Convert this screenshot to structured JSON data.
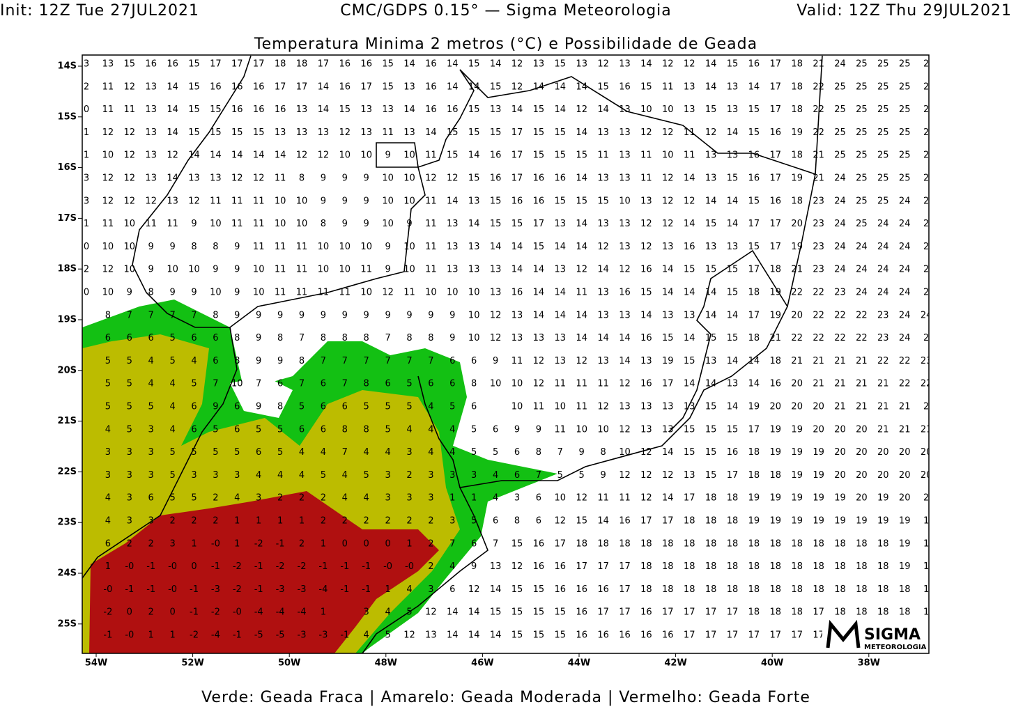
{
  "header": {
    "init": "Init: 12Z Tue 27JUL2021",
    "model": "CMC/GDPS 0.15° — Sigma Meteorologia",
    "valid": "Valid: 12Z Thu 29JUL2021"
  },
  "title": "Temperatura Minima 2 metros (°C) e Possibilidade de Geada",
  "map": {
    "lat_labels": [
      "14S",
      "15S",
      "16S",
      "17S",
      "18S",
      "19S",
      "20S",
      "21S",
      "22S",
      "23S",
      "24S",
      "25S"
    ],
    "lon_labels": [
      "54W",
      "52W",
      "50W",
      "48W",
      "46W",
      "44W",
      "42W",
      "40W",
      "38W"
    ],
    "grid": [
      [
        "3",
        "13",
        "15",
        "16",
        "16",
        "15",
        "17",
        "17",
        "17",
        "18",
        "18",
        "17",
        "16",
        "16",
        "15",
        "14",
        "16",
        "14",
        "15",
        "14",
        "12",
        "13",
        "15",
        "13",
        "12",
        "13",
        "14",
        "12",
        "12",
        "14",
        "15",
        "16",
        "17",
        "18",
        "21",
        "24",
        "25",
        "25",
        "25",
        "2"
      ],
      [
        "2",
        "11",
        "12",
        "13",
        "14",
        "15",
        "16",
        "16",
        "16",
        "17",
        "17",
        "14",
        "16",
        "17",
        "15",
        "13",
        "16",
        "14",
        "14",
        "15",
        "12",
        "14",
        "14",
        "14",
        "15",
        "16",
        "15",
        "11",
        "13",
        "14",
        "13",
        "14",
        "17",
        "18",
        "22",
        "25",
        "25",
        "25",
        "25",
        "2"
      ],
      [
        "0",
        "11",
        "11",
        "13",
        "14",
        "15",
        "15",
        "16",
        "16",
        "16",
        "13",
        "14",
        "15",
        "13",
        "13",
        "14",
        "16",
        "16",
        "15",
        "13",
        "14",
        "15",
        "14",
        "12",
        "14",
        "13",
        "10",
        "10",
        "13",
        "15",
        "13",
        "15",
        "17",
        "18",
        "22",
        "25",
        "25",
        "25",
        "25",
        "2"
      ],
      [
        "1",
        "12",
        "12",
        "13",
        "14",
        "15",
        "15",
        "15",
        "15",
        "13",
        "13",
        "13",
        "12",
        "13",
        "11",
        "13",
        "14",
        "15",
        "15",
        "15",
        "17",
        "15",
        "15",
        "14",
        "13",
        "13",
        "12",
        "12",
        "11",
        "12",
        "14",
        "15",
        "16",
        "19",
        "22",
        "25",
        "25",
        "25",
        "25",
        "2"
      ],
      [
        "1",
        "10",
        "12",
        "13",
        "12",
        "14",
        "14",
        "14",
        "14",
        "14",
        "12",
        "12",
        "10",
        "10",
        "9",
        "10",
        "11",
        "15",
        "14",
        "16",
        "17",
        "15",
        "15",
        "15",
        "11",
        "13",
        "11",
        "10",
        "11",
        "13",
        "13",
        "16",
        "17",
        "18",
        "21",
        "25",
        "25",
        "25",
        "25",
        "2"
      ],
      [
        "3",
        "12",
        "12",
        "13",
        "14",
        "13",
        "13",
        "12",
        "12",
        "11",
        "8",
        "9",
        "9",
        "9",
        "10",
        "10",
        "12",
        "12",
        "15",
        "16",
        "17",
        "16",
        "16",
        "14",
        "13",
        "13",
        "11",
        "12",
        "14",
        "13",
        "15",
        "16",
        "17",
        "19",
        "21",
        "24",
        "25",
        "25",
        "25",
        "2"
      ],
      [
        "3",
        "12",
        "12",
        "12",
        "13",
        "12",
        "11",
        "11",
        "11",
        "10",
        "10",
        "9",
        "9",
        "9",
        "10",
        "10",
        "11",
        "14",
        "13",
        "15",
        "16",
        "16",
        "15",
        "15",
        "15",
        "10",
        "13",
        "12",
        "12",
        "14",
        "14",
        "15",
        "16",
        "18",
        "23",
        "24",
        "25",
        "25",
        "24",
        "2"
      ],
      [
        "1",
        "11",
        "10",
        "11",
        "11",
        "9",
        "10",
        "11",
        "11",
        "10",
        "10",
        "8",
        "9",
        "9",
        "10",
        "9",
        "11",
        "13",
        "14",
        "15",
        "15",
        "17",
        "13",
        "14",
        "13",
        "13",
        "12",
        "12",
        "14",
        "15",
        "14",
        "17",
        "17",
        "20",
        "23",
        "24",
        "25",
        "24",
        "24",
        "2"
      ],
      [
        "0",
        "10",
        "10",
        "9",
        "9",
        "8",
        "8",
        "9",
        "11",
        "11",
        "11",
        "10",
        "10",
        "10",
        "9",
        "10",
        "11",
        "13",
        "13",
        "14",
        "14",
        "15",
        "14",
        "14",
        "12",
        "13",
        "12",
        "13",
        "16",
        "13",
        "13",
        "15",
        "17",
        "19",
        "23",
        "24",
        "24",
        "24",
        "24",
        "2"
      ],
      [
        "2",
        "12",
        "10",
        "9",
        "10",
        "10",
        "9",
        "9",
        "10",
        "11",
        "11",
        "10",
        "10",
        "11",
        "9",
        "10",
        "11",
        "13",
        "13",
        "13",
        "14",
        "14",
        "13",
        "12",
        "14",
        "12",
        "16",
        "14",
        "15",
        "15",
        "15",
        "17",
        "18",
        "21",
        "23",
        "24",
        "24",
        "24",
        "24",
        "2"
      ],
      [
        "0",
        "10",
        "9",
        "8",
        "9",
        "9",
        "10",
        "9",
        "10",
        "11",
        "11",
        "11",
        "11",
        "10",
        "12",
        "11",
        "10",
        "10",
        "10",
        "13",
        "16",
        "14",
        "14",
        "11",
        "13",
        "16",
        "15",
        "14",
        "14",
        "14",
        "15",
        "18",
        "19",
        "22",
        "22",
        "23",
        "24",
        "24",
        "24",
        "2"
      ],
      [
        null,
        "8",
        "7",
        "7",
        "7",
        "7",
        "8",
        "9",
        "9",
        "9",
        "9",
        "9",
        "9",
        "9",
        "9",
        "9",
        "9",
        "9",
        "10",
        "12",
        "13",
        "14",
        "14",
        "14",
        "13",
        "13",
        "14",
        "13",
        "13",
        "14",
        "14",
        "17",
        "19",
        "20",
        "22",
        "22",
        "22",
        "23",
        "24",
        "24"
      ],
      [
        null,
        "6",
        "6",
        "6",
        "5",
        "6",
        "6",
        "8",
        "9",
        "8",
        "7",
        "8",
        "8",
        "8",
        "7",
        "8",
        "8",
        "9",
        "10",
        "12",
        "13",
        "13",
        "13",
        "14",
        "14",
        "14",
        "16",
        "15",
        "14",
        "15",
        "15",
        "18",
        "21",
        "22",
        "22",
        "22",
        "22",
        "23",
        "24",
        "2"
      ],
      [
        null,
        "5",
        "5",
        "4",
        "5",
        "4",
        "6",
        "8",
        "9",
        "9",
        "8",
        "7",
        "7",
        "7",
        "7",
        "7",
        "7",
        "6",
        "6",
        "9",
        "11",
        "12",
        "13",
        "12",
        "13",
        "14",
        "13",
        "19",
        "15",
        "13",
        "14",
        "14",
        "18",
        "21",
        "21",
        "21",
        "21",
        "22",
        "22",
        "23"
      ],
      [
        null,
        "5",
        "5",
        "4",
        "4",
        "5",
        "7",
        "10",
        "7",
        "6",
        "7",
        "6",
        "7",
        "8",
        "6",
        "5",
        "6",
        "6",
        "8",
        "10",
        "10",
        "12",
        "11",
        "11",
        "11",
        "12",
        "16",
        "17",
        "14",
        "14",
        "13",
        "14",
        "16",
        "20",
        "21",
        "21",
        "21",
        "21",
        "22",
        "22"
      ],
      [
        null,
        "5",
        "5",
        "5",
        "4",
        "6",
        "9",
        "6",
        "9",
        "8",
        "5",
        "6",
        "6",
        "5",
        "5",
        "5",
        "4",
        "5",
        "6",
        null,
        "10",
        "11",
        "10",
        "11",
        "12",
        "13",
        "13",
        "13",
        "13",
        "15",
        "14",
        "19",
        "20",
        "20",
        "20",
        "21",
        "21",
        "21",
        "21",
        "2"
      ],
      [
        null,
        "4",
        "5",
        "3",
        "4",
        "6",
        "5",
        "6",
        "5",
        "5",
        "6",
        "6",
        "8",
        "8",
        "5",
        "4",
        "4",
        "4",
        "5",
        "6",
        "9",
        "9",
        "11",
        "10",
        "10",
        "12",
        "13",
        "13",
        "15",
        "15",
        "15",
        "17",
        "19",
        "19",
        "20",
        "20",
        "20",
        "21",
        "21",
        "21"
      ],
      [
        null,
        "3",
        "3",
        "3",
        "5",
        "5",
        "5",
        "5",
        "6",
        "5",
        "4",
        "4",
        "7",
        "4",
        "4",
        "3",
        "4",
        "4",
        "5",
        "5",
        "6",
        "8",
        "7",
        "9",
        "8",
        "10",
        "12",
        "14",
        "15",
        "15",
        "16",
        "18",
        "19",
        "19",
        "19",
        "20",
        "20",
        "20",
        "20",
        "20"
      ],
      [
        null,
        "3",
        "3",
        "3",
        "5",
        "3",
        "3",
        "3",
        "4",
        "4",
        "4",
        "5",
        "4",
        "5",
        "3",
        "2",
        "3",
        "3",
        "3",
        "4",
        "6",
        "7",
        "5",
        "5",
        "9",
        "12",
        "12",
        "12",
        "13",
        "15",
        "17",
        "18",
        "18",
        "19",
        "19",
        "20",
        "20",
        "20",
        "20",
        "20"
      ],
      [
        null,
        "4",
        "3",
        "6",
        "5",
        "5",
        "2",
        "4",
        "3",
        "2",
        "2",
        "2",
        "4",
        "4",
        "3",
        "3",
        "3",
        "1",
        "1",
        "4",
        "3",
        "6",
        "10",
        "12",
        "11",
        "11",
        "12",
        "14",
        "17",
        "18",
        "18",
        "19",
        "19",
        "19",
        "19",
        "19",
        "20",
        "19",
        "20",
        "2"
      ],
      [
        null,
        "4",
        "3",
        "3",
        "2",
        "2",
        "2",
        "1",
        "1",
        "1",
        "1",
        "2",
        "2",
        "2",
        "2",
        "2",
        "2",
        "3",
        "5",
        "6",
        "8",
        "6",
        "12",
        "15",
        "14",
        "16",
        "17",
        "17",
        "18",
        "18",
        "18",
        "19",
        "19",
        "19",
        "19",
        "19",
        "19",
        "19",
        "19",
        "1"
      ],
      [
        null,
        "6",
        "2",
        "2",
        "3",
        "1",
        "-0",
        "1",
        "-2",
        "-1",
        "2",
        "1",
        "0",
        "0",
        "0",
        "1",
        "2",
        "7",
        "6",
        "7",
        "15",
        "16",
        "17",
        "18",
        "18",
        "18",
        "18",
        "18",
        "18",
        "18",
        "18",
        "18",
        "18",
        "18",
        "18",
        "18",
        "18",
        "18",
        "19",
        "1"
      ],
      [
        null,
        "1",
        "-0",
        "-1",
        "-0",
        "0",
        "-1",
        "-2",
        "-1",
        "-2",
        "-2",
        "-1",
        "-1",
        "-1",
        "-0",
        "-0",
        "2",
        "4",
        "9",
        "13",
        "12",
        "16",
        "16",
        "17",
        "17",
        "17",
        "18",
        "18",
        "18",
        "18",
        "18",
        "18",
        "18",
        "18",
        "18",
        "18",
        "18",
        "18",
        "19",
        "1"
      ],
      [
        null,
        "-0",
        "-1",
        "-1",
        "-0",
        "-1",
        "-3",
        "-2",
        "-1",
        "-3",
        "-3",
        "-4",
        "-1",
        "-1",
        "1",
        "4",
        "3",
        "6",
        "12",
        "14",
        "15",
        "15",
        "16",
        "16",
        "16",
        "17",
        "18",
        "18",
        "18",
        "18",
        "18",
        "18",
        "18",
        "18",
        "18",
        "18",
        "18",
        "18",
        "18",
        "1"
      ],
      [
        null,
        "-2",
        "0",
        "2",
        "0",
        "-1",
        "-2",
        "-0",
        "-4",
        "-4",
        "-4",
        "1",
        null,
        "3",
        "4",
        "5",
        "12",
        "14",
        "14",
        "15",
        "15",
        "15",
        "15",
        "16",
        "17",
        "17",
        "16",
        "17",
        "17",
        "17",
        "17",
        "18",
        "18",
        "18",
        "17",
        "18",
        "18",
        "18",
        "18",
        "1"
      ],
      [
        null,
        "-1",
        "-0",
        "1",
        "1",
        "-2",
        "-4",
        "-1",
        "-5",
        "-5",
        "-3",
        "-3",
        "-1",
        "4",
        "5",
        "12",
        "13",
        "14",
        "14",
        "14",
        "15",
        "15",
        "15",
        "16",
        "16",
        "16",
        "16",
        "16",
        "17",
        "17",
        "17",
        "17",
        "17",
        "17",
        "17",
        "17",
        "17",
        null,
        null,
        null
      ]
    ]
  },
  "legend": "Verde: Geada Fraca | Amarelo: Geada Moderada | Vermelho: Geada Forte",
  "logo": {
    "name": "SIGMA",
    "subtitle": "METEOROLOGIA"
  }
}
